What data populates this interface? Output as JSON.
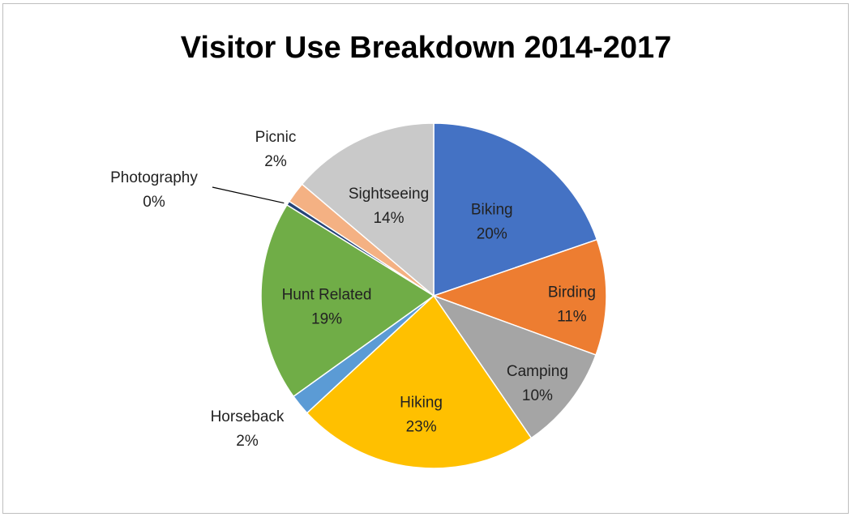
{
  "chart_data": {
    "type": "pie",
    "title": "Visitor Use Breakdown 2014-2017",
    "slices": [
      {
        "name": "Biking",
        "label": "20%",
        "value": 20,
        "color": "#4472c4"
      },
      {
        "name": "Birding",
        "label": "11%",
        "value": 11,
        "color": "#ed7d31"
      },
      {
        "name": "Camping",
        "label": "10%",
        "value": 10,
        "color": "#a5a5a5"
      },
      {
        "name": "Hiking",
        "label": "23%",
        "value": 23,
        "color": "#ffc000"
      },
      {
        "name": "Horseback",
        "label": "2%",
        "value": 2,
        "color": "#5b9bd5"
      },
      {
        "name": "Hunt Related",
        "label": "19%",
        "value": 19,
        "color": "#70ad47"
      },
      {
        "name": "Photography",
        "label": "0%",
        "value": 0.4,
        "color": "#264478"
      },
      {
        "name": "Picnic",
        "label": "2%",
        "value": 2,
        "color": "#f4b183"
      },
      {
        "name": "Sightseeing",
        "label": "14%",
        "value": 14,
        "color": "#c9c9c9"
      }
    ],
    "start_angle": "12 o'clock",
    "direction": "clockwise",
    "data_labels": "category name and percentage"
  }
}
